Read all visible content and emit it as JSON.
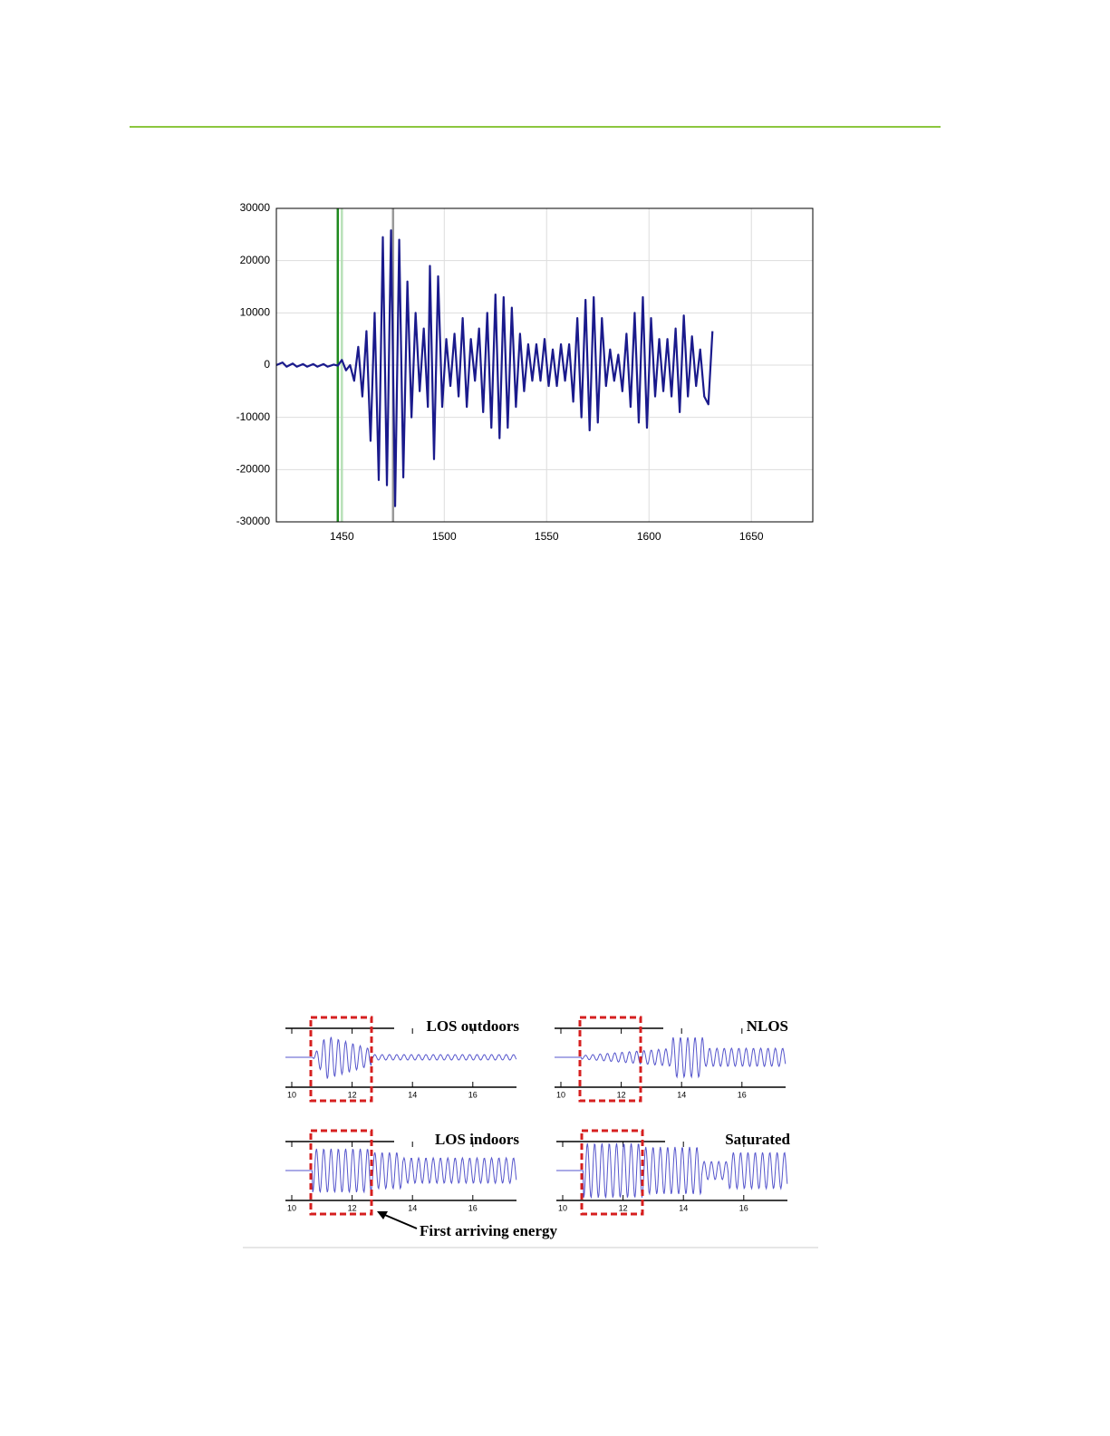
{
  "chart_data": {
    "type": "line",
    "color": "#1a1a8c",
    "x": [
      1418,
      1421,
      1423,
      1426,
      1428,
      1431,
      1433,
      1436,
      1438,
      1441,
      1443,
      1446,
      1448,
      1450,
      1452,
      1454,
      1456,
      1458,
      1460,
      1462,
      1464,
      1466,
      1468,
      1470,
      1472,
      1474,
      1476,
      1478,
      1480,
      1482,
      1484,
      1486,
      1488,
      1490,
      1492,
      1493,
      1495,
      1497,
      1499,
      1501,
      1503,
      1505,
      1507,
      1509,
      1511,
      1513,
      1515,
      1517,
      1519,
      1521,
      1523,
      1525,
      1527,
      1529,
      1531,
      1533,
      1535,
      1537,
      1539,
      1541,
      1543,
      1545,
      1547,
      1549,
      1551,
      1553,
      1555,
      1557,
      1559,
      1561,
      1563,
      1565,
      1567,
      1569,
      1571,
      1573,
      1575,
      1577,
      1579,
      1581,
      1583,
      1585,
      1587,
      1589,
      1591,
      1593,
      1595,
      1597,
      1599,
      1601,
      1603,
      1605,
      1607,
      1609,
      1611,
      1613,
      1615,
      1617,
      1619,
      1621,
      1623,
      1625,
      1627,
      1629,
      1631
    ],
    "values": [
      0,
      500,
      -300,
      300,
      -300,
      200,
      -300,
      200,
      -300,
      200,
      -300,
      100,
      -100,
      1000,
      -1000,
      0,
      -3000,
      3500,
      -6000,
      6500,
      -14500,
      10000,
      -22000,
      24500,
      -23000,
      25800,
      -27000,
      24000,
      -21500,
      16000,
      -10000,
      10000,
      -5000,
      7000,
      -8000,
      19000,
      -18000,
      17000,
      -8000,
      5000,
      -4000,
      6000,
      -6000,
      9000,
      -8000,
      5000,
      -3000,
      7000,
      -9000,
      10000,
      -12000,
      13500,
      -14000,
      13000,
      -12000,
      11000,
      -8000,
      6000,
      -5000,
      4000,
      -3000,
      4000,
      -3000,
      5000,
      -4000,
      3000,
      -4000,
      4000,
      -3000,
      4000,
      -7000,
      9000,
      -10000,
      12500,
      -12500,
      13000,
      -11000,
      9000,
      -4000,
      3000,
      -3000,
      2000,
      -5000,
      6000,
      -8000,
      10000,
      -11000,
      13000,
      -12000,
      9000,
      -6000,
      5000,
      -5000,
      5000,
      -6000,
      7000,
      -9000,
      9500,
      -6000,
      5500,
      -4000,
      3000,
      -6000,
      -7500,
      6500
    ],
    "xlim": [
      1418,
      1680
    ],
    "xticks": [
      1450,
      1500,
      1550,
      1600,
      1650
    ],
    "ylim": [
      -30000,
      30000
    ],
    "yticks": [
      -30000,
      -20000,
      -10000,
      0,
      10000,
      20000,
      30000
    ],
    "grid": true,
    "vlines": [
      {
        "x": 1448,
        "color": "#1f8a1f"
      },
      {
        "x": 1450,
        "color": "#b8e0b8"
      },
      {
        "x": 1475,
        "color": "#999999"
      }
    ]
  },
  "figure": {
    "panels": [
      {
        "label": "LOS outdoors",
        "ticks": [
          "10",
          "12",
          "14",
          "16"
        ]
      },
      {
        "label": "NLOS",
        "ticks": [
          "10",
          "12",
          "14",
          "16"
        ]
      },
      {
        "label": "LOS indoors",
        "ticks": [
          "10",
          "12",
          "14",
          "16"
        ]
      },
      {
        "label": "Saturated",
        "ticks": [
          "10",
          "12",
          "14",
          "16"
        ]
      }
    ],
    "annotation": "First arriving energy"
  }
}
